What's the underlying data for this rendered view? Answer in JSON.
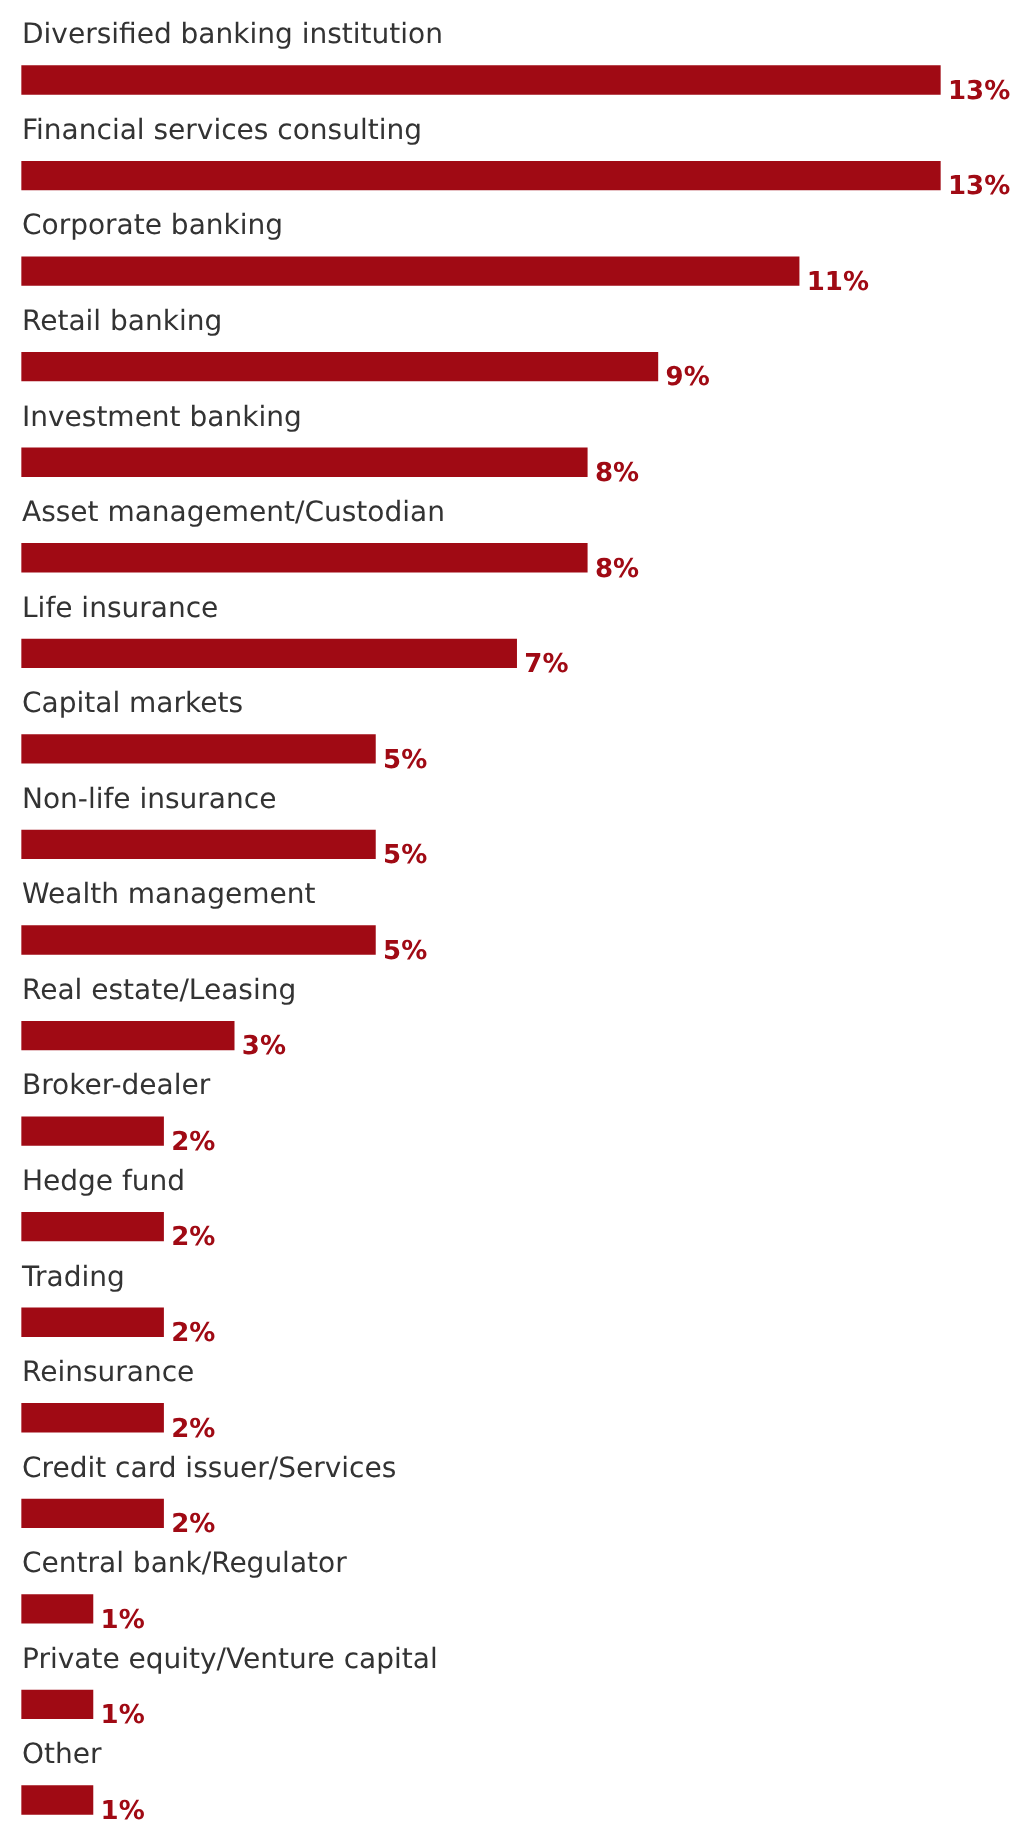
{
  "chart_data": {
    "type": "bar",
    "orientation": "horizontal",
    "categories": [
      "Diversified banking institution",
      "Financial services consulting",
      "Corporate banking",
      "Retail banking",
      "Investment banking",
      "Asset management/Custodian",
      "Life insurance",
      "Capital markets",
      "Non-life insurance",
      "Wealth management",
      "Real estate/Leasing",
      "Broker-dealer",
      "Hedge fund",
      "Trading",
      "Reinsurance",
      "Credit card issuer/Services",
      "Central bank/Regulator",
      "Private equity/Venture capital",
      "Other"
    ],
    "values": [
      13,
      13,
      11,
      9,
      8,
      8,
      7,
      5,
      5,
      5,
      3,
      2,
      2,
      2,
      2,
      2,
      1,
      1,
      1
    ],
    "value_labels": [
      "13%",
      "13%",
      "11%",
      "9%",
      "8%",
      "8%",
      "7%",
      "5%",
      "5%",
      "5%",
      "3%",
      "2%",
      "2%",
      "2%",
      "2%",
      "2%",
      "1%",
      "1%",
      "1%"
    ],
    "color": "#a00a14",
    "legend": false
  }
}
